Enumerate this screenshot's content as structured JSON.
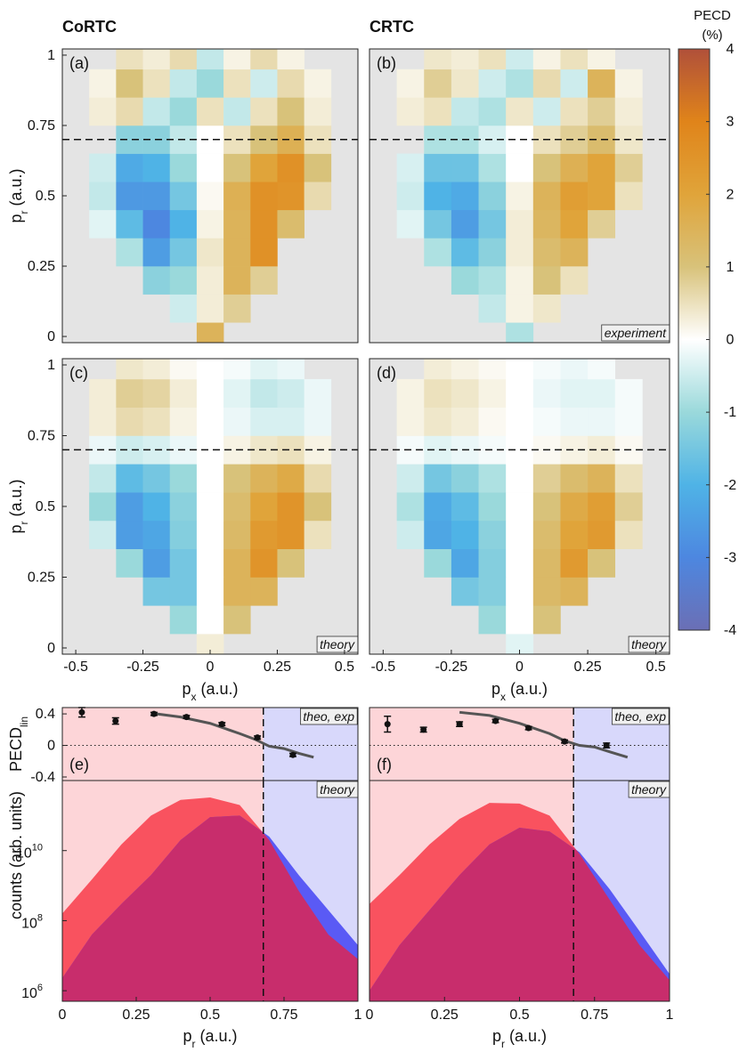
{
  "columns": [
    "CoRTC",
    "CRTC"
  ],
  "colorbar": {
    "title": [
      "PECD",
      "(%)"
    ],
    "lim": [
      -4,
      4
    ],
    "ticks": [
      -4,
      -3,
      -2,
      -1,
      0,
      1,
      2,
      3,
      4
    ]
  },
  "chart_data": [
    {
      "type": "heatmap",
      "panel": "(a)",
      "ylabel": [
        "p",
        "r",
        " (a.u.)"
      ],
      "xlim": [
        -0.55,
        0.55
      ],
      "ylim": [
        -0.022,
        1.022
      ],
      "yticks": [
        0,
        0.25,
        0.5,
        0.75,
        1
      ],
      "cutoff": 0.7,
      "x": [
        -0.5,
        -0.4,
        -0.3,
        -0.2,
        -0.1,
        0,
        0.1,
        0.2,
        0.3,
        0.4,
        0.5
      ],
      "y": [
        0,
        0.1,
        0.2,
        0.3,
        0.4,
        0.5,
        0.6,
        0.7,
        0.8,
        0.9,
        1
      ],
      "z": [
        [
          null,
          null,
          null,
          null,
          null,
          1.5,
          null,
          null,
          null,
          null,
          null
        ],
        [
          null,
          null,
          null,
          null,
          -0.5,
          0.3,
          0.8,
          null,
          null,
          null,
          null
        ],
        [
          null,
          null,
          null,
          -1.2,
          -1,
          0.3,
          1.5,
          0.8,
          null,
          null,
          null
        ],
        [
          null,
          null,
          -0.8,
          -2.5,
          -1.5,
          0.4,
          1.5,
          2.6,
          null,
          null,
          null
        ],
        [
          null,
          -0.3,
          -1.8,
          -3,
          -2,
          0.2,
          1.5,
          2.6,
          1.2,
          null,
          null
        ],
        [
          null,
          -0.6,
          -2.6,
          -2.6,
          -1.5,
          0.1,
          1.6,
          2.6,
          2.5,
          0.6,
          null
        ],
        [
          null,
          -0.5,
          -2.2,
          -2,
          -1,
          0,
          1,
          2,
          2.6,
          1,
          null
        ],
        [
          null,
          null,
          -1.2,
          -1.2,
          -0.6,
          0,
          0.5,
          1,
          1.6,
          0.5,
          null
        ],
        [
          null,
          0.3,
          0.6,
          -0.6,
          -1,
          0.5,
          -0.6,
          0.5,
          1,
          0.3,
          null
        ],
        [
          null,
          0.2,
          1,
          0.5,
          -0.6,
          -1,
          0.5,
          -0.5,
          0.6,
          0.2,
          null
        ],
        [
          null,
          null,
          0.5,
          0.3,
          0.6,
          -0.6,
          0.2,
          0.6,
          0.2,
          null,
          null
        ]
      ]
    },
    {
      "type": "heatmap",
      "panel": "(b)",
      "tag": "experiment",
      "xlim": [
        -0.55,
        0.55
      ],
      "ylim": [
        -0.022,
        1.022
      ],
      "cutoff": 0.7,
      "x": [
        -0.5,
        -0.4,
        -0.3,
        -0.2,
        -0.1,
        0,
        0.1,
        0.2,
        0.3,
        0.4,
        0.5
      ],
      "y": [
        0,
        0.1,
        0.2,
        0.3,
        0.4,
        0.5,
        0.6,
        0.7,
        0.8,
        0.9,
        1
      ],
      "z": [
        [
          null,
          null,
          null,
          null,
          null,
          -0.8,
          null,
          null,
          null,
          null,
          null
        ],
        [
          null,
          null,
          null,
          null,
          -0.6,
          0.2,
          0.4,
          null,
          null,
          null,
          null
        ],
        [
          null,
          null,
          null,
          -1,
          -0.8,
          0.2,
          1,
          0.5,
          null,
          null,
          null
        ],
        [
          null,
          null,
          -0.8,
          -1.8,
          -1.2,
          0.3,
          1.2,
          1.5,
          null,
          null,
          null
        ],
        [
          null,
          -0.3,
          -1.5,
          -2.5,
          -1.5,
          0.3,
          1.4,
          2,
          0.8,
          null,
          null
        ],
        [
          null,
          -0.5,
          -2,
          -2.2,
          -1.2,
          0.2,
          1.5,
          2.2,
          2,
          0.5,
          null
        ],
        [
          null,
          -0.4,
          -1.6,
          -1.6,
          -0.8,
          0,
          1,
          1.6,
          2,
          0.8,
          null
        ],
        [
          null,
          null,
          -0.8,
          -0.8,
          -0.4,
          0,
          0.5,
          0.8,
          1.2,
          0.4,
          null
        ],
        [
          null,
          0.3,
          0.5,
          -0.6,
          -0.8,
          0.4,
          -0.5,
          0.5,
          0.8,
          0.3,
          null
        ],
        [
          null,
          0.2,
          0.8,
          0.4,
          -0.5,
          -0.8,
          0.6,
          -0.5,
          1.5,
          0.2,
          null
        ],
        [
          null,
          null,
          0.4,
          0.3,
          0.5,
          -0.5,
          0.2,
          0.5,
          0.2,
          null,
          null
        ]
      ]
    },
    {
      "type": "heatmap",
      "panel": "(c)",
      "tag": "theory",
      "ylabel": [
        "p",
        "r",
        " (a.u.)"
      ],
      "xlabel": [
        "p",
        "x",
        " (a.u.)"
      ],
      "xlim": [
        -0.55,
        0.55
      ],
      "ylim": [
        -0.022,
        1.022
      ],
      "yticks": [
        0,
        0.25,
        0.5,
        0.75,
        1
      ],
      "xticks": [
        -0.5,
        -0.25,
        0,
        0.25,
        0.5
      ],
      "cutoff": 0.7,
      "x": [
        -0.5,
        -0.4,
        -0.3,
        -0.2,
        -0.1,
        0,
        0.1,
        0.2,
        0.3,
        0.4,
        0.5
      ],
      "y": [
        0,
        0.1,
        0.2,
        0.3,
        0.4,
        0.5,
        0.6,
        0.7,
        0.8,
        0.9,
        1
      ],
      "z": [
        [
          null,
          null,
          null,
          null,
          null,
          0.3,
          null,
          null,
          null,
          null,
          null
        ],
        [
          null,
          null,
          null,
          null,
          -1,
          0,
          1,
          null,
          null,
          null,
          null
        ],
        [
          null,
          null,
          null,
          -1.5,
          -1.5,
          0,
          1.5,
          1.5,
          null,
          null,
          null
        ],
        [
          null,
          null,
          -1,
          -2.5,
          -1.5,
          0,
          1.5,
          2.5,
          1,
          null,
          null
        ],
        [
          null,
          -0.5,
          -2.5,
          -2.3,
          -1.3,
          0,
          1.3,
          2.3,
          2.5,
          0.5,
          null
        ],
        [
          null,
          -1,
          -2.5,
          -2,
          -1.2,
          0,
          1.2,
          2,
          2.5,
          1,
          null
        ],
        [
          null,
          -0.6,
          -1.8,
          -1.5,
          -1,
          0,
          1,
          1.5,
          1.8,
          0.6,
          null
        ],
        [
          null,
          -0.2,
          -0.5,
          -0.4,
          -0.2,
          0,
          0.2,
          0.4,
          0.5,
          0.2,
          null
        ],
        [
          null,
          0.3,
          0.6,
          0.5,
          0.2,
          0,
          -0.2,
          -0.4,
          -0.4,
          -0.2,
          null
        ],
        [
          null,
          0.3,
          0.8,
          0.7,
          0.3,
          0,
          -0.3,
          -0.6,
          -0.5,
          -0.2,
          null
        ],
        [
          null,
          null,
          0.4,
          0.3,
          0.1,
          0,
          -0.1,
          -0.3,
          -0.2,
          null,
          null
        ]
      ]
    },
    {
      "type": "heatmap",
      "panel": "(d)",
      "tag": "theory",
      "xlabel": [
        "p",
        "x",
        " (a.u.)"
      ],
      "xlim": [
        -0.55,
        0.55
      ],
      "ylim": [
        -0.022,
        1.022
      ],
      "xticks": [
        -0.5,
        -0.25,
        0,
        0.25,
        0.5
      ],
      "cutoff": 0.7,
      "x": [
        -0.5,
        -0.4,
        -0.3,
        -0.2,
        -0.1,
        0,
        0.1,
        0.2,
        0.3,
        0.4,
        0.5
      ],
      "y": [
        0,
        0.1,
        0.2,
        0.3,
        0.4,
        0.5,
        0.6,
        0.7,
        0.8,
        0.9,
        1
      ],
      "z": [
        [
          null,
          null,
          null,
          null,
          null,
          -0.3,
          null,
          null,
          null,
          null,
          null
        ],
        [
          null,
          null,
          null,
          null,
          -1,
          0,
          1,
          null,
          null,
          null,
          null
        ],
        [
          null,
          null,
          null,
          -1.5,
          -1.3,
          0,
          1.3,
          1.5,
          null,
          null,
          null
        ],
        [
          null,
          null,
          -1,
          -2.3,
          -1.3,
          0,
          1.3,
          2.3,
          1,
          null,
          null
        ],
        [
          null,
          -0.5,
          -2.3,
          -2,
          -1.2,
          0,
          1.2,
          2,
          2.3,
          0.5,
          null
        ],
        [
          null,
          -0.8,
          -2.2,
          -1.8,
          -1,
          0,
          1,
          1.8,
          2.2,
          0.8,
          null
        ],
        [
          null,
          -0.5,
          -1.5,
          -1.2,
          -0.8,
          0,
          0.8,
          1.2,
          1.5,
          0.5,
          null
        ],
        [
          null,
          -0.1,
          -0.3,
          -0.2,
          -0.1,
          0,
          0.1,
          0.2,
          0.3,
          0.1,
          null
        ],
        [
          null,
          0.2,
          0.4,
          0.3,
          0.1,
          0,
          -0.1,
          -0.2,
          -0.2,
          -0.1,
          null
        ],
        [
          null,
          0.2,
          0.5,
          0.4,
          0.2,
          0,
          -0.2,
          -0.3,
          -0.3,
          -0.1,
          null
        ],
        [
          null,
          null,
          0.3,
          0.2,
          0.1,
          0,
          -0.1,
          -0.2,
          -0.1,
          null,
          null
        ]
      ]
    },
    {
      "type": "pecd",
      "panel": "(e)",
      "tag": "theo, exp",
      "ylabel": [
        "PECD",
        "lin"
      ],
      "xlim": [
        0,
        1
      ],
      "ylim": [
        -0.445,
        0.48
      ],
      "yticks": [
        -0.4,
        0,
        0.4
      ],
      "split": 0.68,
      "exp": {
        "x": [
          0.066,
          0.18,
          0.31,
          0.42,
          0.54,
          0.66,
          0.78
        ],
        "values": [
          0.42,
          0.31,
          0.4,
          0.36,
          0.27,
          0.1,
          -0.12
        ],
        "errors": [
          0.06,
          0.04,
          0.02,
          0.02,
          0.02,
          0.02,
          0.02
        ],
        "color": "#111111"
      },
      "theo": {
        "x": [
          0.3,
          0.4,
          0.5,
          0.6,
          0.65,
          0.7,
          0.75,
          0.8,
          0.85
        ],
        "values": [
          0.41,
          0.36,
          0.28,
          0.15,
          0.08,
          -0.01,
          -0.04,
          -0.1,
          -0.15
        ],
        "color": "#555555"
      }
    },
    {
      "type": "pecd",
      "panel": "(f)",
      "tag": "theo, exp",
      "xlim": [
        0,
        1
      ],
      "ylim": [
        -0.445,
        0.48
      ],
      "split": 0.68,
      "exp": {
        "x": [
          0.06,
          0.18,
          0.3,
          0.42,
          0.53,
          0.65,
          0.79
        ],
        "values": [
          0.27,
          0.2,
          0.27,
          0.31,
          0.22,
          0.05,
          0
        ],
        "errors": [
          0.1,
          0.03,
          0.03,
          0.02,
          0.02,
          0.02,
          0.03
        ],
        "color": "#111111"
      },
      "theo": {
        "x": [
          0.3,
          0.4,
          0.5,
          0.6,
          0.65,
          0.7,
          0.75,
          0.8,
          0.86
        ],
        "values": [
          0.42,
          0.38,
          0.28,
          0.15,
          0.06,
          0,
          -0.02,
          -0.08,
          -0.15
        ],
        "color": "#555555"
      }
    },
    {
      "type": "area",
      "tag": "theory",
      "ylabel": [
        "counts (arb. units)"
      ],
      "xlabel": [
        "p",
        "r",
        " (a.u.)"
      ],
      "log": true,
      "xlim": [
        0,
        1
      ],
      "ylim": [
        500000,
        1000000000000
      ],
      "xticks": [
        0,
        0.25,
        0.5,
        0.75,
        1
      ],
      "split": 0.68,
      "yticks": [
        {
          "value": 1000000,
          "label": "10",
          "power": "6"
        },
        {
          "value": 100000000,
          "label": "10",
          "power": "8"
        },
        {
          "value": 10000000000,
          "label": "10",
          "power": "10"
        }
      ],
      "x": [
        0,
        0.1,
        0.2,
        0.3,
        0.4,
        0.5,
        0.6,
        0.7,
        0.8,
        0.9,
        1
      ],
      "series": [
        {
          "color": "#f9525f",
          "values": [
            160000000,
            1500000000,
            15000000000,
            100000000000,
            280000000000,
            330000000000,
            200000000000,
            20000000000,
            700000000,
            40000000,
            8000000
          ]
        },
        {
          "color": "#5a5af5",
          "values": [
            2300000,
            40000000,
            300000000,
            2000000000,
            20000000000,
            90000000000,
            100000000000,
            25000000000,
            2000000000,
            200000000,
            20000000
          ]
        }
      ]
    },
    {
      "type": "area",
      "tag": "theory",
      "xlabel": [
        "p",
        "r",
        " (a.u.)"
      ],
      "log": true,
      "xlim": [
        0,
        1
      ],
      "ylim": [
        500000,
        1000000000000
      ],
      "xticks": [
        0,
        0.25,
        0.5,
        0.75,
        1
      ],
      "split": 0.68,
      "x": [
        0,
        0.1,
        0.2,
        0.3,
        0.4,
        0.5,
        0.6,
        0.7,
        0.8,
        0.9,
        1
      ],
      "series": [
        {
          "color": "#f9525f",
          "values": [
            300000000,
            2000000000,
            15000000000,
            80000000000,
            230000000000,
            220000000000,
            100000000000,
            8000000000,
            400000000,
            20000000,
            2000000
          ]
        },
        {
          "color": "#5a5af5",
          "values": [
            1000000,
            20000000,
            200000000,
            2000000000,
            15000000000,
            45000000000,
            35000000000,
            9000000000,
            800000000,
            50000000,
            3000000
          ]
        }
      ]
    }
  ]
}
